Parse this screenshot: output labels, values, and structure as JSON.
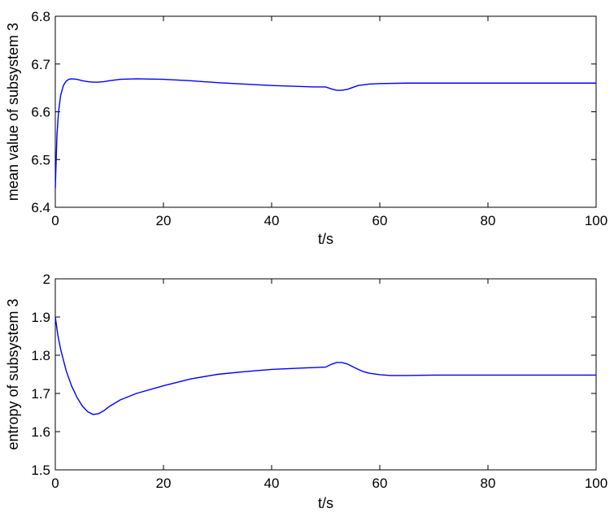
{
  "chart_data": [
    {
      "type": "line",
      "xlabel": "t/s",
      "ylabel": "mean value of subsystem 3",
      "xlim": [
        0,
        100
      ],
      "ylim": [
        6.4,
        6.8
      ],
      "xticks": [
        "0",
        "20",
        "40",
        "60",
        "80",
        "100"
      ],
      "yticks": [
        "6.4",
        "6.5",
        "6.6",
        "6.7",
        "6.8"
      ],
      "color": "#0000ff",
      "grid": false,
      "series": [
        {
          "x": [
            0,
            0.3,
            0.6,
            1,
            1.5,
            2,
            2.5,
            3,
            4,
            5,
            6,
            7,
            8,
            9,
            10,
            12,
            15,
            20,
            25,
            30,
            35,
            40,
            45,
            48,
            50,
            51,
            52,
            53,
            54,
            55,
            56,
            58,
            60,
            65,
            70,
            80,
            90,
            100
          ],
          "y": [
            6.44,
            6.55,
            6.6,
            6.635,
            6.655,
            6.664,
            6.668,
            6.669,
            6.668,
            6.665,
            6.663,
            6.662,
            6.662,
            6.663,
            6.665,
            6.668,
            6.669,
            6.668,
            6.665,
            6.661,
            6.658,
            6.655,
            6.653,
            6.652,
            6.652,
            6.648,
            6.645,
            6.645,
            6.647,
            6.651,
            6.655,
            6.658,
            6.659,
            6.66,
            6.66,
            6.66,
            6.66,
            6.66
          ]
        }
      ]
    },
    {
      "type": "line",
      "xlabel": "t/s",
      "ylabel": "entropy of subsystem 3",
      "xlim": [
        0,
        100
      ],
      "ylim": [
        1.5,
        2.0
      ],
      "xticks": [
        "0",
        "20",
        "40",
        "60",
        "80",
        "100"
      ],
      "yticks": [
        "1.5",
        "1.6",
        "1.7",
        "1.8",
        "1.9",
        "2"
      ],
      "color": "#0000ff",
      "grid": false,
      "series": [
        {
          "x": [
            0,
            0.5,
            1,
            2,
            3,
            4,
            5,
            6,
            7,
            8,
            9,
            10,
            12,
            15,
            20,
            25,
            30,
            35,
            40,
            45,
            50,
            51,
            52,
            53,
            54,
            55,
            56,
            57,
            58,
            60,
            62,
            65,
            70,
            80,
            90,
            100
          ],
          "y": [
            1.9,
            1.85,
            1.815,
            1.76,
            1.72,
            1.69,
            1.667,
            1.652,
            1.645,
            1.647,
            1.655,
            1.666,
            1.683,
            1.7,
            1.72,
            1.738,
            1.75,
            1.757,
            1.763,
            1.766,
            1.769,
            1.776,
            1.781,
            1.781,
            1.777,
            1.77,
            1.763,
            1.757,
            1.753,
            1.749,
            1.747,
            1.747,
            1.748,
            1.748,
            1.748,
            1.748
          ]
        }
      ]
    }
  ]
}
